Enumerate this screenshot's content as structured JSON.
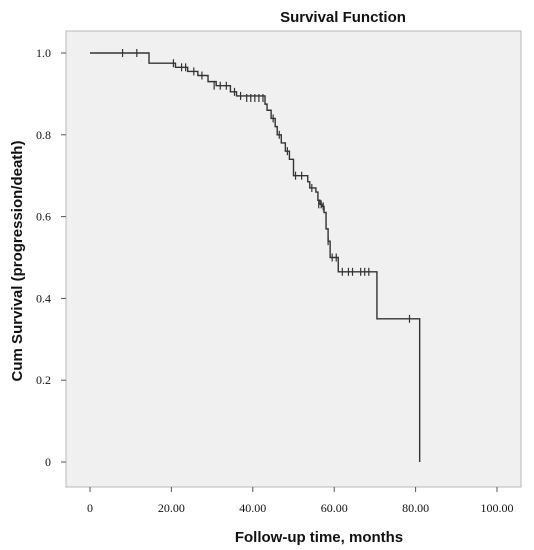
{
  "chart_data": {
    "type": "line",
    "subtype": "kaplan-meier step function with censor marks",
    "title": "Survival Function",
    "xlabel": "Follow-up time, months",
    "ylabel": "Cum Survival (progression/death)",
    "xlim": [
      0,
      100
    ],
    "ylim": [
      0,
      1.0
    ],
    "x_ticks": [
      0,
      20,
      40,
      60,
      80,
      100
    ],
    "x_tick_labels": [
      "0",
      "20.00",
      "40.00",
      "60.00",
      "80.00",
      "100.00"
    ],
    "y_ticks": [
      0,
      0.2,
      0.4,
      0.6,
      0.8,
      1.0
    ],
    "y_tick_labels": [
      "0",
      "0.2",
      "0.4",
      "0.6",
      "0.8",
      "1.0"
    ],
    "grid": false,
    "legend": "none",
    "background": "#f0f0f0",
    "line_color": "#333333",
    "series": [
      {
        "steps": [
          {
            "x": 0,
            "y": 1.0
          },
          {
            "x": 14.5,
            "y": 0.975
          },
          {
            "x": 21,
            "y": 0.965
          },
          {
            "x": 24,
            "y": 0.955
          },
          {
            "x": 26.5,
            "y": 0.945
          },
          {
            "x": 29,
            "y": 0.93
          },
          {
            "x": 31,
            "y": 0.92
          },
          {
            "x": 34.5,
            "y": 0.905
          },
          {
            "x": 36,
            "y": 0.895
          },
          {
            "x": 43,
            "y": 0.875
          },
          {
            "x": 43.5,
            "y": 0.86
          },
          {
            "x": 44.5,
            "y": 0.84
          },
          {
            "x": 45.5,
            "y": 0.82
          },
          {
            "x": 46,
            "y": 0.8
          },
          {
            "x": 47,
            "y": 0.78
          },
          {
            "x": 48,
            "y": 0.76
          },
          {
            "x": 49,
            "y": 0.74
          },
          {
            "x": 50,
            "y": 0.7
          },
          {
            "x": 53.5,
            "y": 0.685
          },
          {
            "x": 54,
            "y": 0.67
          },
          {
            "x": 55.5,
            "y": 0.66
          },
          {
            "x": 56,
            "y": 0.64
          },
          {
            "x": 56.5,
            "y": 0.63
          },
          {
            "x": 57,
            "y": 0.625
          },
          {
            "x": 57.5,
            "y": 0.61
          },
          {
            "x": 58,
            "y": 0.57
          },
          {
            "x": 58.5,
            "y": 0.54
          },
          {
            "x": 59,
            "y": 0.5
          },
          {
            "x": 61,
            "y": 0.465
          },
          {
            "x": 70.5,
            "y": 0.35
          },
          {
            "x": 81,
            "y": 0.0
          }
        ],
        "x_end": 81,
        "censored": [
          {
            "x": 8,
            "y": 1.0
          },
          {
            "x": 11.5,
            "y": 1.0
          },
          {
            "x": 20.5,
            "y": 0.975
          },
          {
            "x": 22.5,
            "y": 0.965
          },
          {
            "x": 23.5,
            "y": 0.965
          },
          {
            "x": 25.5,
            "y": 0.955
          },
          {
            "x": 27.5,
            "y": 0.945
          },
          {
            "x": 30.5,
            "y": 0.92
          },
          {
            "x": 32,
            "y": 0.92
          },
          {
            "x": 33.5,
            "y": 0.92
          },
          {
            "x": 35.5,
            "y": 0.905
          },
          {
            "x": 37,
            "y": 0.895
          },
          {
            "x": 38.5,
            "y": 0.89
          },
          {
            "x": 39.5,
            "y": 0.89
          },
          {
            "x": 40.5,
            "y": 0.89
          },
          {
            "x": 41.5,
            "y": 0.89
          },
          {
            "x": 42.5,
            "y": 0.89
          },
          {
            "x": 45,
            "y": 0.84
          },
          {
            "x": 46.5,
            "y": 0.8
          },
          {
            "x": 48.5,
            "y": 0.76
          },
          {
            "x": 50.5,
            "y": 0.7
          },
          {
            "x": 52,
            "y": 0.7
          },
          {
            "x": 54.5,
            "y": 0.67
          },
          {
            "x": 56.2,
            "y": 0.63
          },
          {
            "x": 56.8,
            "y": 0.63
          },
          {
            "x": 57.3,
            "y": 0.625
          },
          {
            "x": 58.5,
            "y": 0.54
          },
          {
            "x": 59.5,
            "y": 0.5
          },
          {
            "x": 60.5,
            "y": 0.5
          },
          {
            "x": 62,
            "y": 0.465
          },
          {
            "x": 63.5,
            "y": 0.465
          },
          {
            "x": 64.5,
            "y": 0.465
          },
          {
            "x": 66.5,
            "y": 0.465
          },
          {
            "x": 67.5,
            "y": 0.465
          },
          {
            "x": 68.5,
            "y": 0.465
          },
          {
            "x": 78.5,
            "y": 0.35
          }
        ]
      }
    ]
  }
}
